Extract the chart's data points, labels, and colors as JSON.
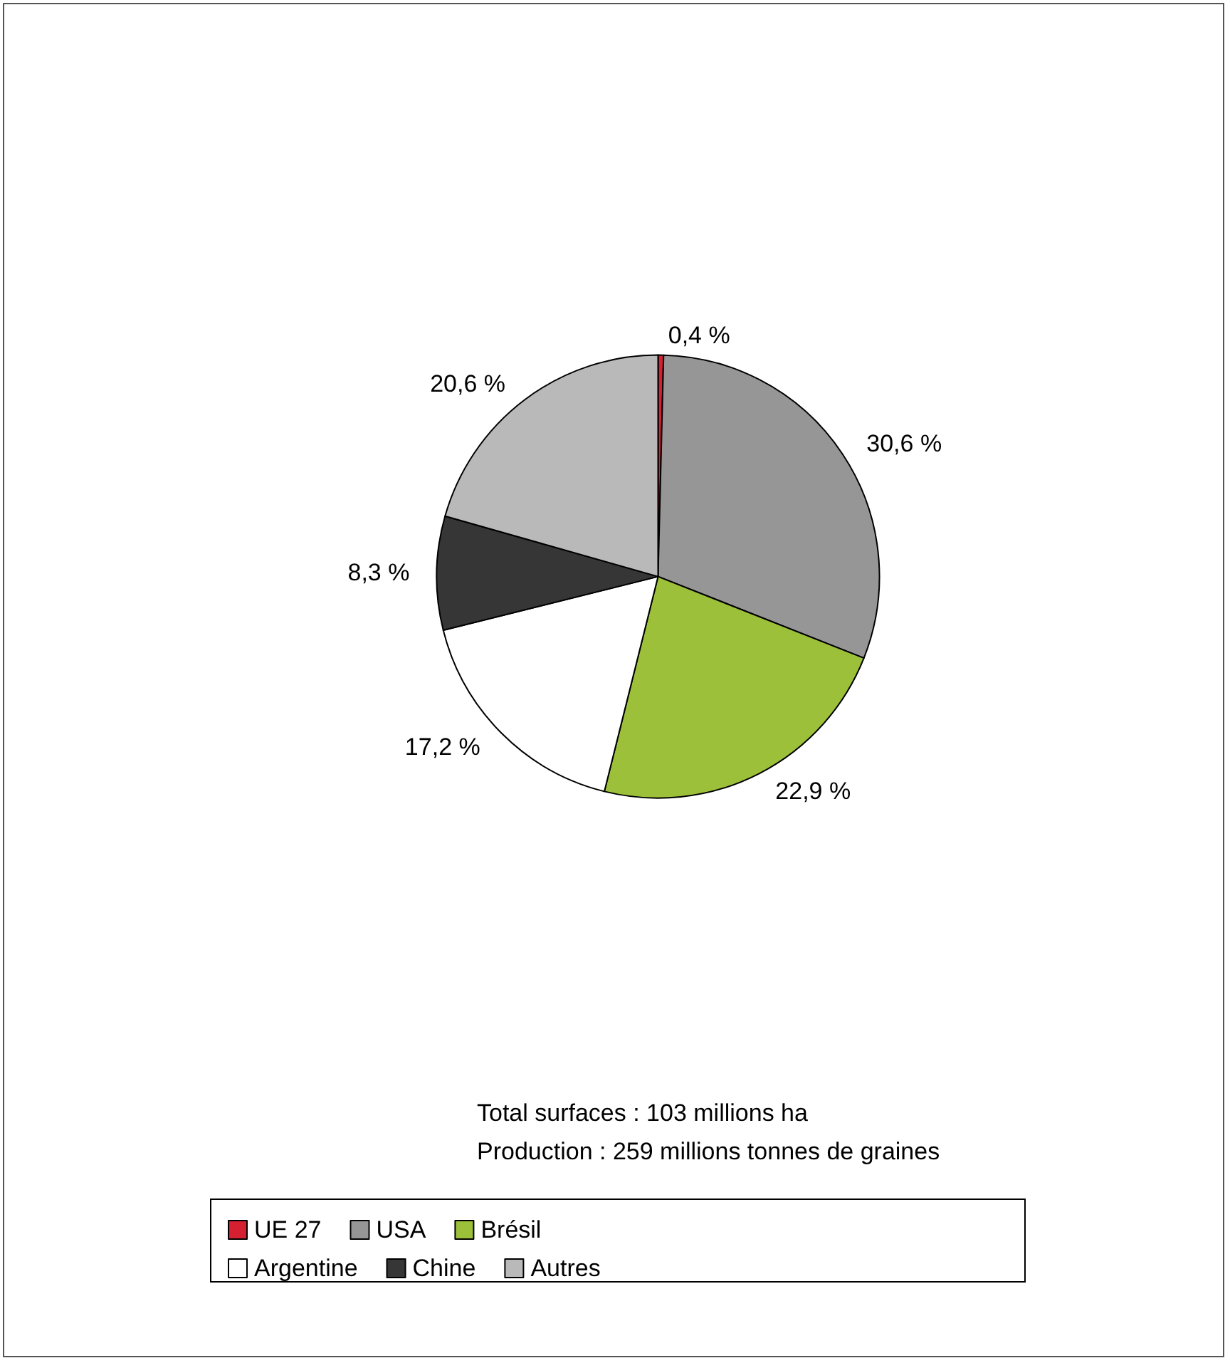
{
  "chart_data": {
    "type": "pie",
    "categories": [
      "UE 27",
      "USA",
      "Brésil",
      "Argentine",
      "Chine",
      "Autres"
    ],
    "values": [
      0.4,
      30.6,
      22.9,
      17.2,
      8.3,
      20.6
    ],
    "colors": [
      "#d42030",
      "#969696",
      "#9cc03a",
      "#ffffff",
      "#363636",
      "#b9b9b9"
    ],
    "value_labels": [
      "0,4 %",
      "30,6 %",
      "22,9 %",
      "17,2 %",
      "8,3 %",
      "20,6 %"
    ],
    "annotations": [
      "Total surfaces : 103 millions ha",
      "Production : 259 millions tonnes de graines"
    ],
    "legend": "bottom"
  }
}
